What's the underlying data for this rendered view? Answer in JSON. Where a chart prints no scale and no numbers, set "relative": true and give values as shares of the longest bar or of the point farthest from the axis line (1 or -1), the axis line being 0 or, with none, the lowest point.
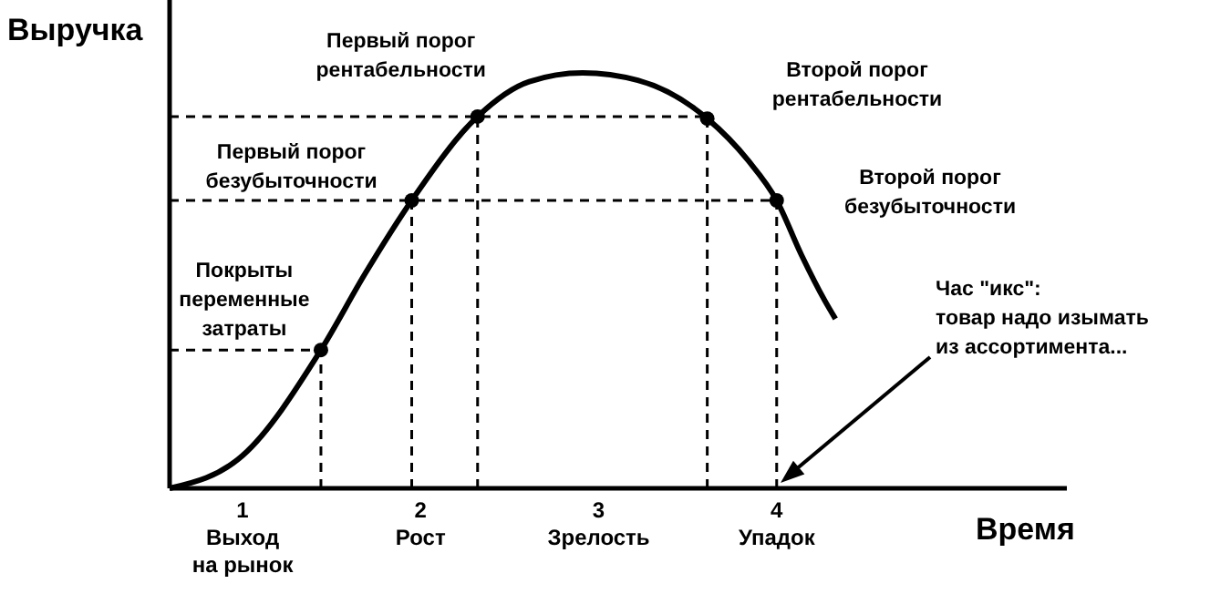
{
  "chart_data": {
    "type": "line",
    "relative": true,
    "xlabel": "Время",
    "ylabel": "Выручка",
    "xlim": [
      0.59,
      5.63
    ],
    "xticks": [
      {
        "value": 1,
        "label": "1\nВыход\nна рынок"
      },
      {
        "value": 2,
        "label": "2\nРост"
      },
      {
        "value": 3,
        "label": "3\nЗрелость"
      },
      {
        "value": 4,
        "label": "4\nУпадок"
      }
    ],
    "tick_labels": "x",
    "line_style": "solid",
    "grid": false,
    "series": [
      {
        "color": "#000000",
        "x": [
          0.59,
          1,
          1.44,
          1.69,
          1.95,
          2.32,
          2.61,
          2.91,
          3.22,
          3.61,
          3.84,
          4,
          4.14,
          4.27,
          4.33
        ],
        "values": [
          0,
          0.079,
          0.333,
          0.518,
          0.693,
          0.895,
          0.979,
          1,
          0.982,
          0.89,
          0.789,
          0.693,
          0.561,
          0.452,
          0.408
        ]
      },
      {
        "line_style": "dashed",
        "color": "#000000",
        "x": [
          0.59,
          1.44
        ],
        "values": [
          0.333,
          0.333
        ]
      },
      {
        "line_style": "dashed",
        "color": "#000000",
        "x": [
          0.59,
          4
        ],
        "values": [
          0.693,
          0.693
        ]
      },
      {
        "line_style": "dashed",
        "color": "#000000",
        "x": [
          0.59,
          3.61
        ],
        "values": [
          0.895,
          0.895
        ]
      },
      {
        "line_style": "dashed",
        "color": "#000000",
        "x": [
          1.44,
          1.44
        ],
        "values": [
          0,
          0.333
        ]
      },
      {
        "line_style": "dashed",
        "color": "#000000",
        "x": [
          1.95,
          1.95
        ],
        "values": [
          0,
          0.693
        ]
      },
      {
        "line_style": "dashed",
        "color": "#000000",
        "x": [
          2.32,
          2.32
        ],
        "values": [
          0,
          0.895
        ]
      },
      {
        "line_style": "dashed",
        "color": "#000000",
        "x": [
          3.61,
          3.61
        ],
        "values": [
          0,
          0.89
        ]
      },
      {
        "line_style": "dashed",
        "color": "#000000",
        "x": [
          4,
          4
        ],
        "values": [
          0,
          0.693
        ]
      },
      {
        "type": "scatter",
        "color": "#000000",
        "x": [
          1.44,
          1.95,
          2.32,
          3.61,
          4
        ],
        "values": [
          0.333,
          0.693,
          0.895,
          0.89,
          0.693
        ]
      }
    ],
    "annotations": [
      {
        "text": "Покрыты\nпеременные\nзатраты",
        "x": 1.44,
        "y": 0.333
      },
      {
        "text": "Первый порог\nбезубыточности",
        "x": 1.95,
        "y": 0.693
      },
      {
        "text": "Первый порог\nрентабельности",
        "x": 2.32,
        "y": 0.895
      },
      "Второй порог\nрентабельности",
      "Второй порог\nбезубыточности",
      "Час \"икс\":\nтовар надо изымать\nиз ассортимента..."
    ]
  }
}
